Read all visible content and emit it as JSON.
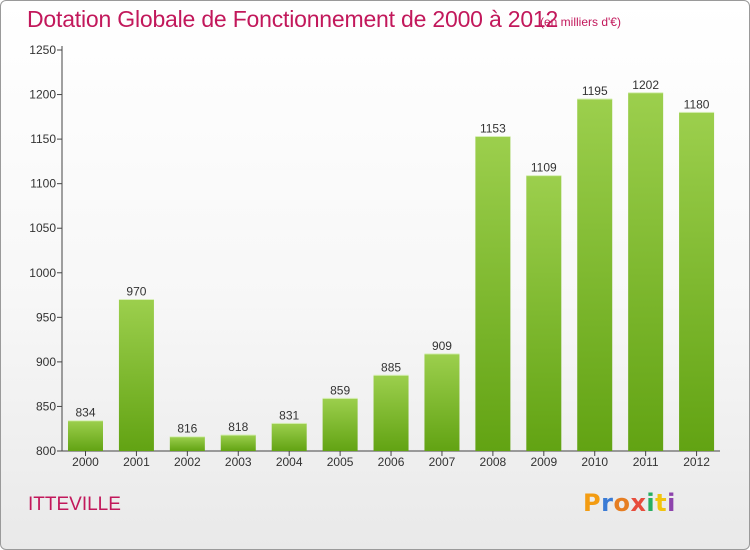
{
  "header": {
    "title": "Dotation Globale de Fonctionnement de 2000 à 2012",
    "subtitle": "(en milliers d'€)"
  },
  "footer": {
    "commune": "ITTEVILLE",
    "logo_text": "Proxiti"
  },
  "colors": {
    "title": "#c2185b",
    "bar_light": "#9ccf4d",
    "bar_dark": "#62a313",
    "logo_letters": [
      "#f39c12",
      "#3a7bd5",
      "#e67e22",
      "#e74c3c",
      "#27ae60",
      "#f1c40f",
      "#8e44ad"
    ]
  },
  "chart_data": {
    "type": "bar",
    "title": "Dotation Globale de Fonctionnement de 2000 à 2012",
    "subtitle": "(en milliers d'€)",
    "categories": [
      "2000",
      "2001",
      "2002",
      "2003",
      "2004",
      "2005",
      "2006",
      "2007",
      "2008",
      "2009",
      "2010",
      "2011",
      "2012"
    ],
    "values": [
      834,
      970,
      816,
      818,
      831,
      859,
      885,
      909,
      1153,
      1109,
      1195,
      1202,
      1180
    ],
    "value_labels": [
      "834",
      "970",
      "816",
      "818",
      "831",
      "859",
      "885",
      "909",
      "1153",
      "1109",
      "1195",
      "1202",
      "1180"
    ],
    "ylim": [
      800,
      1250
    ],
    "yticks": [
      "800",
      "850",
      "900",
      "950",
      "1000",
      "1050",
      "1100",
      "1150",
      "1200",
      "1250"
    ],
    "ytick_values": [
      800,
      850,
      900,
      950,
      1000,
      1050,
      1100,
      1150,
      1200,
      1250
    ],
    "xlabel": "",
    "ylabel": "",
    "grid": false,
    "legend": "none"
  }
}
